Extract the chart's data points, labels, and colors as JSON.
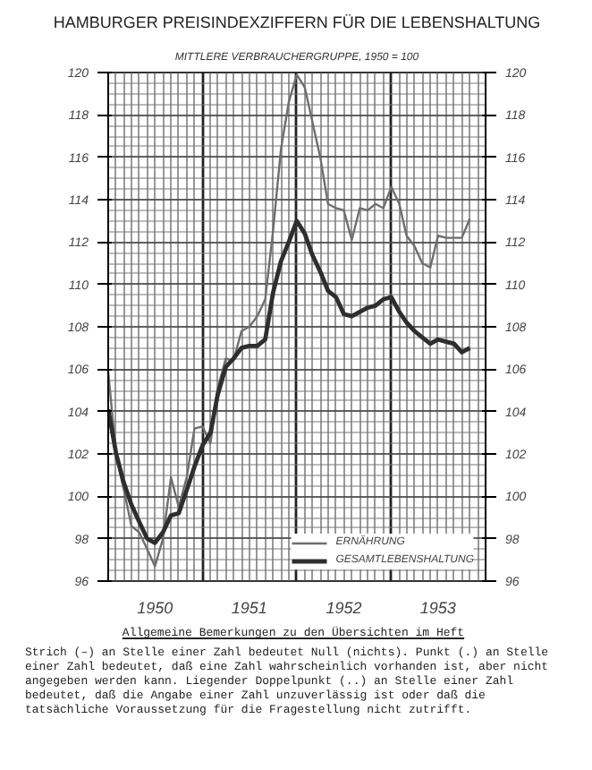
{
  "chart_data": {
    "type": "line",
    "title": "HAMBURGER PREISINDEXZIFFERN FÜR DIE LEBENSHALTUNG",
    "subtitle": "MITTLERE VERBRAUCHERGRUPPE, 1950 = 100",
    "x": [
      "1950-01",
      "1950-02",
      "1950-03",
      "1950-04",
      "1950-05",
      "1950-06",
      "1950-07",
      "1950-08",
      "1950-09",
      "1950-10",
      "1950-11",
      "1950-12",
      "1951-01",
      "1951-02",
      "1951-03",
      "1951-04",
      "1951-05",
      "1951-06",
      "1951-07",
      "1951-08",
      "1951-09",
      "1951-10",
      "1951-11",
      "1951-12",
      "1952-01",
      "1952-02",
      "1952-03",
      "1952-04",
      "1952-05",
      "1952-06",
      "1952-07",
      "1952-08",
      "1952-09",
      "1952-10",
      "1952-11",
      "1952-12",
      "1953-01",
      "1953-02",
      "1953-03",
      "1953-04",
      "1953-05",
      "1953-06",
      "1953-07",
      "1953-08",
      "1953-09",
      "1953-10",
      "1953-11"
    ],
    "series": [
      {
        "name": "ERNÄHRUNG",
        "color": "#6e6e6e",
        "values": [
          105.9,
          101.9,
          100.4,
          98.6,
          98.3,
          97.5,
          96.7,
          98.0,
          100.9,
          99.5,
          100.9,
          103.2,
          103.3,
          102.5,
          105.1,
          106.5,
          106.4,
          107.8,
          108.0,
          108.5,
          109.3,
          112.5,
          116.4,
          118.6,
          119.9,
          119.3,
          117.7,
          116.0,
          113.8,
          113.6,
          113.5,
          112.1,
          113.6,
          113.5,
          113.8,
          113.6,
          114.6,
          113.8,
          112.3,
          111.8,
          111.0,
          110.8,
          112.3,
          112.2,
          112.2,
          112.2,
          113.1
        ]
      },
      {
        "name": "GESAMTLEBENSHALTUNG",
        "color": "#2e2e2e",
        "values": [
          104.1,
          102.0,
          100.7,
          99.6,
          98.8,
          98.0,
          97.8,
          98.3,
          99.1,
          99.2,
          100.3,
          101.4,
          102.4,
          103.0,
          104.8,
          106.1,
          106.5,
          107.0,
          107.1,
          107.1,
          107.4,
          109.6,
          111.1,
          112.0,
          113.0,
          112.4,
          111.4,
          110.6,
          109.7,
          109.4,
          108.6,
          108.5,
          108.7,
          108.9,
          109.0,
          109.3,
          109.4,
          108.7,
          108.2,
          107.8,
          107.5,
          107.2,
          107.4,
          107.3,
          107.2,
          106.8,
          107.0
        ]
      }
    ],
    "xlim": [
      "1950-01",
      "1954-01"
    ],
    "xticks": [
      {
        "value": "1950-07",
        "label": "1950"
      },
      {
        "value": "1951-07",
        "label": "1951"
      },
      {
        "value": "1952-07",
        "label": "1952"
      },
      {
        "value": "1953-07",
        "label": "1953"
      }
    ],
    "ylim": [
      96,
      120
    ],
    "yticks": [
      96,
      98,
      100,
      102,
      104,
      106,
      108,
      110,
      112,
      114,
      116,
      118,
      120
    ],
    "y2lim": [
      96,
      120
    ],
    "y2ticks": [
      96,
      98,
      100,
      102,
      104,
      106,
      108,
      110,
      112,
      114,
      116,
      118,
      120
    ],
    "grid": true,
    "legend": "bottom right",
    "annotations": [
      "Allgemeine Bemerkungen zu den Übersichten im Heft",
      "Strich (–) an Stelle einer Zahl bedeutet Null (nichts). Punkt (.) an Stelle einer Zahl bedeutet, daß eine Zahl wahrscheinlich vorhanden ist, aber nicht angegeben werden kann. Liegender Doppelpunkt (..) an Stelle einer Zahl bedeutet, daß die Angabe einer Zahl unzuverlässig ist oder daß die tatsächliche Voraussetzung für die Fragestellung nicht zutrifft."
    ]
  }
}
